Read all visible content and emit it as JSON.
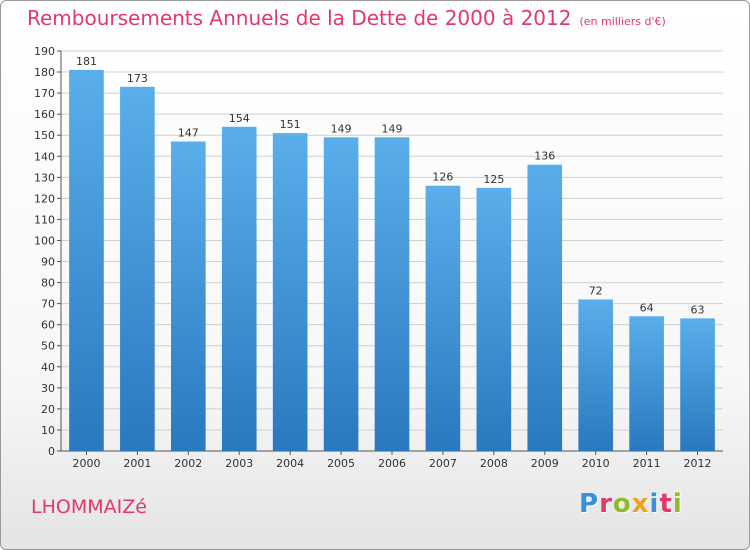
{
  "title": "Remboursements Annuels de la Dette de 2000 à 2012",
  "subtitle": "(en milliers d'€)",
  "commune": "LHOMMAIZé",
  "logo": {
    "letters": [
      "P",
      "r",
      "o",
      "x",
      "i",
      "t",
      "i"
    ],
    "colors": [
      "#3a8fd8",
      "#e0396a",
      "#8dbb2a",
      "#f0a020",
      "#3a8fd8",
      "#e0396a",
      "#8dbb2a"
    ]
  },
  "colors": {
    "bar_top": "#5aaeea",
    "bar_bottom": "#2a78bf",
    "grid": "#d0d0d0",
    "title": "#e0396a"
  },
  "chart_data": {
    "type": "bar",
    "title": "Remboursements Annuels de la Dette de 2000 à 2012",
    "subtitle": "(en milliers d'€)",
    "categories": [
      "2000",
      "2001",
      "2002",
      "2003",
      "2004",
      "2005",
      "2006",
      "2007",
      "2008",
      "2009",
      "2010",
      "2011",
      "2012"
    ],
    "values": [
      181,
      173,
      147,
      154,
      151,
      149,
      149,
      126,
      125,
      136,
      72,
      64,
      63
    ],
    "ylim": [
      0,
      190
    ],
    "ytick_step": 10,
    "grid": true,
    "legend": "none"
  }
}
